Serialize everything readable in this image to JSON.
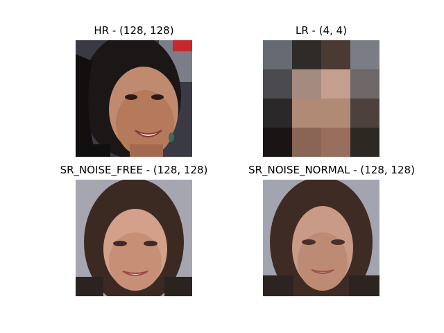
{
  "panels": [
    {
      "title": "HR - (128, 128)"
    },
    {
      "title": "LR - (4, 4)"
    },
    {
      "title": "SR_NOISE_FREE - (128, 128)"
    },
    {
      "title": "SR_NOISE_NORMAL - (128, 128)"
    }
  ],
  "lr_pixels": [
    "#666b72",
    "#2f2b29",
    "#4a3a31",
    "#7a7d84",
    "#4a4a4f",
    "#a58a7f",
    "#c49f8f",
    "#6d6767",
    "#2a2828",
    "#b08a74",
    "#b08a74",
    "#4c413c",
    "#1a1414",
    "#8a6454",
    "#9a6e5c",
    "#2c2824"
  ]
}
